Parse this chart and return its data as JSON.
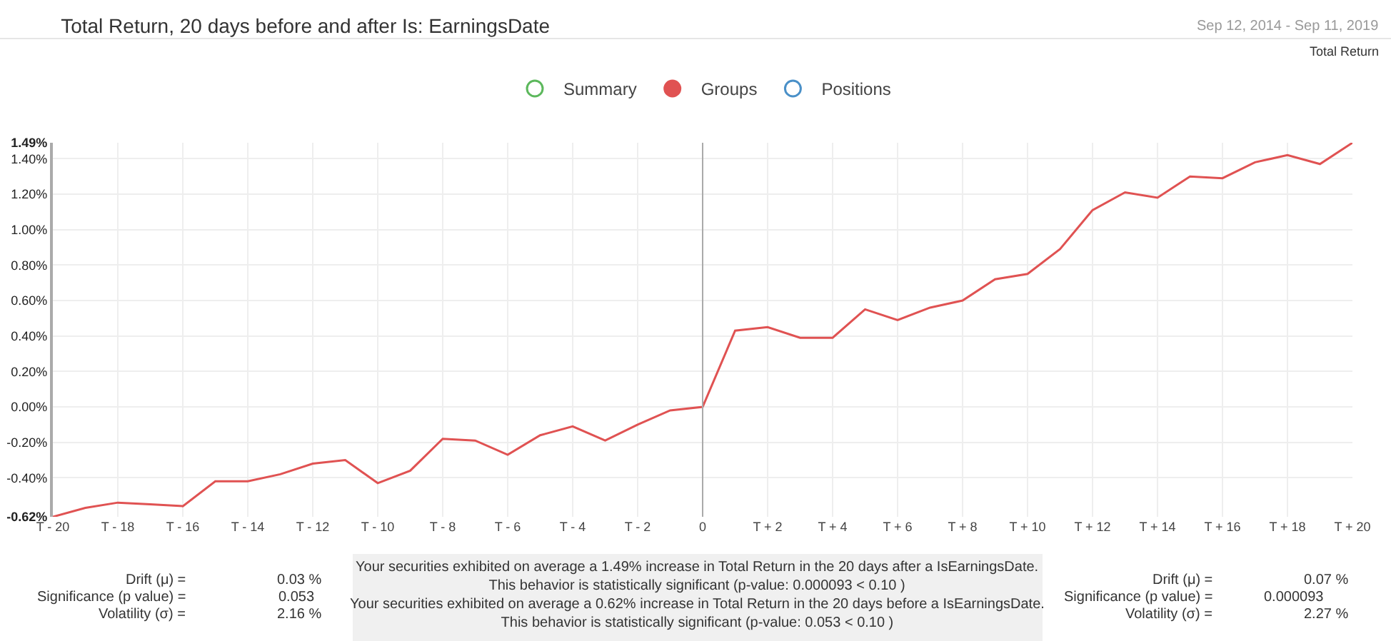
{
  "chart_data": {
    "type": "line",
    "title": "Total Return, 20 days before and after Is: EarningsDate",
    "subtitle": "Sep 12, 2014 - Sep 11, 2019",
    "x": [
      -20,
      -19,
      -18,
      -17,
      -16,
      -15,
      -14,
      -13,
      -12,
      -11,
      -10,
      -9,
      -8,
      -7,
      -6,
      -5,
      -4,
      -3,
      -2,
      -1,
      0,
      1,
      2,
      3,
      4,
      5,
      6,
      7,
      8,
      9,
      10,
      11,
      12,
      13,
      14,
      15,
      16,
      17,
      18,
      19,
      20
    ],
    "series": [
      {
        "name": "Summary",
        "color": "#5cb85c",
        "values": [
          null,
          null,
          null,
          null,
          null,
          null,
          null,
          null,
          null,
          null,
          null,
          null,
          null,
          null,
          null,
          null,
          null,
          null,
          null,
          null,
          null,
          null,
          null,
          null,
          null,
          null,
          null,
          null,
          null,
          null,
          null,
          null,
          null,
          null,
          null,
          null,
          null,
          null,
          null,
          null,
          null
        ]
      },
      {
        "name": "Groups",
        "color": "#e05252",
        "values": [
          -0.62,
          -0.57,
          -0.54,
          -0.55,
          -0.56,
          -0.42,
          -0.42,
          -0.38,
          -0.32,
          -0.3,
          -0.43,
          -0.36,
          -0.18,
          -0.19,
          -0.27,
          -0.16,
          -0.11,
          -0.19,
          -0.1,
          -0.02,
          0.0,
          0.43,
          0.45,
          0.39,
          0.39,
          0.55,
          0.49,
          0.56,
          0.6,
          0.72,
          0.75,
          0.89,
          1.11,
          1.21,
          1.18,
          1.3,
          1.29,
          1.38,
          1.42,
          1.37,
          1.49
        ]
      },
      {
        "name": "Positions",
        "color": "#4a90c8",
        "values": [
          null,
          null,
          null,
          null,
          null,
          null,
          null,
          null,
          null,
          null,
          null,
          null,
          null,
          null,
          null,
          null,
          null,
          null,
          null,
          null,
          null,
          null,
          null,
          null,
          null,
          null,
          null,
          null,
          null,
          null,
          null,
          null,
          null,
          null,
          null,
          null,
          null,
          null,
          null,
          null,
          null
        ]
      }
    ],
    "xlim": [
      -20,
      20
    ],
    "xticks": [
      {
        "value": -20,
        "label": "T - 20"
      },
      {
        "value": -18,
        "label": "T - 18"
      },
      {
        "value": -16,
        "label": "T - 16"
      },
      {
        "value": -14,
        "label": "T - 14"
      },
      {
        "value": -12,
        "label": "T - 12"
      },
      {
        "value": -10,
        "label": "T - 10"
      },
      {
        "value": -8,
        "label": "T - 8"
      },
      {
        "value": -6,
        "label": "T - 6"
      },
      {
        "value": -4,
        "label": "T - 4"
      },
      {
        "value": -2,
        "label": "T - 2"
      },
      0,
      {
        "value": 2,
        "label": "T + 2"
      },
      {
        "value": 4,
        "label": "T + 4"
      },
      {
        "value": 6,
        "label": "T + 6"
      },
      {
        "value": 8,
        "label": "T + 8"
      },
      {
        "value": 10,
        "label": "T + 10"
      },
      {
        "value": 12,
        "label": "T + 12"
      },
      {
        "value": 14,
        "label": "T + 14"
      },
      {
        "value": 16,
        "label": "T + 16"
      },
      {
        "value": 18,
        "label": "T + 18"
      },
      {
        "value": 20,
        "label": "T + 20"
      }
    ],
    "ylim": [
      -0.62,
      1.49
    ],
    "yticks": [
      {
        "value": -0.62,
        "label": "-0.62%"
      },
      {
        "value": -0.4,
        "label": "-0.40%"
      },
      {
        "value": -0.2,
        "label": "-0.20%"
      },
      {
        "value": 0,
        "label": "0.00%"
      },
      {
        "value": 0.2,
        "label": "0.20%"
      },
      {
        "value": 0.4,
        "label": "0.40%"
      },
      {
        "value": 0.6,
        "label": "0.60%"
      },
      {
        "value": 0.8,
        "label": "0.80%"
      },
      {
        "value": 1.0,
        "label": "1.00%"
      },
      {
        "value": 1.2,
        "label": "1.20%"
      },
      {
        "value": 1.4,
        "label": "1.40%"
      },
      {
        "value": 1.49,
        "label": "1.49%"
      }
    ],
    "ref_lines": [
      {
        "axis": "x",
        "value": 0,
        "color": "#aaaaaa"
      }
    ],
    "grid": true,
    "legend": "top",
    "marker": "none",
    "line_style": "solid",
    "annotations": [
      "Total Return",
      "Drift (μ) =",
      "0.03 %",
      "Significance (p value) =",
      "0.053",
      "Volatility (σ) =",
      "2.16 %",
      "Your securities exhibited on average a 1.49% increase in Total Return in the 20 days after a IsEarningsDate.\nThis behavior is statistically significant (p-value: 0.000093 < 0.10 )",
      "Your securities exhibited on average a 0.62% increase in Total Return in the 20 days before a IsEarningsDate.\nThis behavior is statistically significant (p-value: 0.053 < 0.10 )",
      "Drift (μ) =",
      "0.07 %",
      "Significance (p value) =",
      "0.000093",
      "Volatility (σ) =",
      "2.27 %"
    ]
  }
}
